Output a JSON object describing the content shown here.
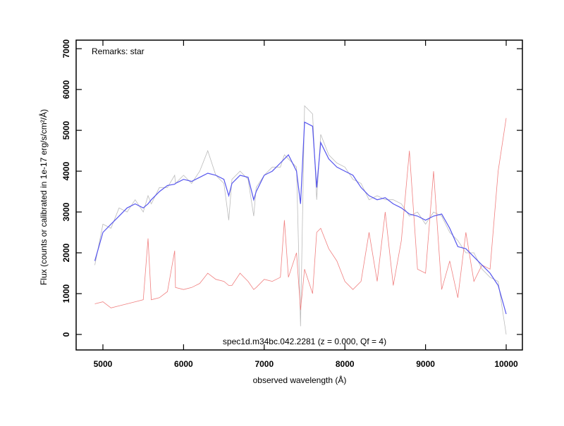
{
  "chart_data": {
    "type": "line",
    "annotations": [
      "Remarks: star",
      "spec1d.m34bc.042.2281 (z = 0.000, Qf = 4)"
    ],
    "xlabel": "observed wavelength (Å)",
    "ylabel": "Flux (counts or calibrated in 1e-17 erg/s/cm²/Å)",
    "x": [
      4900,
      5000,
      5100,
      5200,
      5300,
      5400,
      5500,
      5560,
      5600,
      5700,
      5800,
      5890,
      5900,
      6000,
      6100,
      6200,
      6300,
      6400,
      6500,
      6560,
      6600,
      6700,
      6800,
      6870,
      6900,
      7000,
      7100,
      7200,
      7250,
      7300,
      7400,
      7450,
      7500,
      7600,
      7650,
      7700,
      7800,
      7900,
      8000,
      8100,
      8200,
      8300,
      8400,
      8500,
      8600,
      8700,
      8800,
      8900,
      9000,
      9100,
      9200,
      9300,
      9400,
      9500,
      9600,
      9700,
      9800,
      9900,
      10000
    ],
    "series": [
      {
        "color": "#bbbbbb",
        "values": [
          1700,
          2700,
          2600,
          3100,
          3000,
          3300,
          3000,
          3400,
          3200,
          3600,
          3600,
          3900,
          3700,
          3900,
          3700,
          4000,
          4500,
          3900,
          3700,
          2800,
          3800,
          4000,
          3800,
          2900,
          3600,
          3900,
          4100,
          4100,
          4400,
          4300,
          4100,
          200,
          5600,
          5400,
          3300,
          4900,
          4400,
          4200,
          4100,
          3800,
          3700,
          3300,
          3400,
          3300,
          3300,
          3200,
          2900,
          3000,
          2700,
          3000,
          2900,
          2500,
          2300,
          2000,
          2000,
          1600,
          1400,
          1300,
          0
        ]
      },
      {
        "color": "#f08080",
        "values": [
          750,
          800,
          650,
          700,
          750,
          800,
          850,
          2350,
          850,
          900,
          1050,
          2050,
          1150,
          1100,
          1150,
          1250,
          1500,
          1350,
          1300,
          1200,
          1200,
          1500,
          1300,
          1100,
          1150,
          1350,
          1300,
          1400,
          2800,
          1400,
          2000,
          600,
          1600,
          1000,
          2500,
          2600,
          2100,
          1800,
          1300,
          1100,
          1300,
          2500,
          1300,
          3000,
          1200,
          2300,
          4500,
          1600,
          1500,
          4000,
          1100,
          1800,
          900,
          2500,
          1300,
          1700,
          1600,
          4000,
          5300
        ]
      },
      {
        "color": "#5555ee",
        "values": [
          1800,
          2500,
          2700,
          2900,
          3100,
          3200,
          3100,
          3200,
          3300,
          3500,
          3650,
          3680,
          3700,
          3800,
          3750,
          3850,
          3950,
          3900,
          3800,
          3400,
          3700,
          3900,
          3850,
          3300,
          3500,
          3900,
          4000,
          4200,
          4300,
          4400,
          4000,
          3200,
          5200,
          5100,
          3600,
          4700,
          4300,
          4100,
          4000,
          3900,
          3600,
          3400,
          3300,
          3350,
          3200,
          3100,
          2950,
          2900,
          2800,
          2900,
          2950,
          2600,
          2150,
          2100,
          1900,
          1700,
          1500,
          1200,
          500
        ]
      }
    ],
    "xlim": [
      4668,
      10201
    ],
    "ylim": [
      -380,
      7210
    ],
    "xticks": [
      5000,
      6000,
      7000,
      8000,
      9000,
      10000
    ],
    "yticks": [
      0,
      1000,
      2000,
      3000,
      4000,
      5000,
      6000,
      7000
    ]
  }
}
